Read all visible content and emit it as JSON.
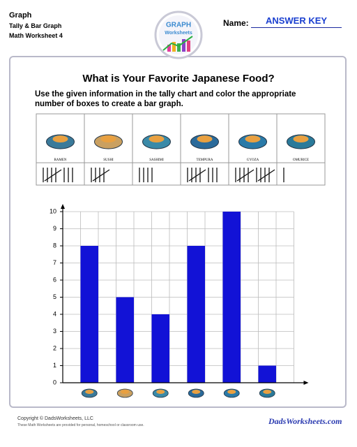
{
  "header": {
    "title": "Graph",
    "subtitle": "Tally & Bar Graph",
    "worksheet": "Math Worksheet 4",
    "logo_top": "GRAPH",
    "logo_bottom": "Worksheets",
    "name_label": "Name:",
    "name_value": "ANSWER KEY"
  },
  "question": "What is Your Favorite Japanese Food?",
  "instructions": "Use the given information in the tally chart and color the appropriate number of boxes to create a bar graph.",
  "chart_data": {
    "type": "bar",
    "categories": [
      "RAMEN",
      "SUSHI",
      "SASHIMI",
      "TEMPURA",
      "GYOZA",
      "OMURICE"
    ],
    "values": [
      8,
      5,
      4,
      8,
      10,
      1
    ],
    "color": "#1212d6",
    "ylim": [
      0,
      10
    ],
    "yticks": [
      0,
      1,
      2,
      3,
      4,
      5,
      6,
      7,
      8,
      9,
      10
    ],
    "grid": true
  },
  "footer": {
    "copyright": "Copyright © DadsWorksheets, LLC",
    "note": "These Math Worksheets are provided for personal, homeschool or classroom use.",
    "brand": "DadsWorksheets.com"
  }
}
